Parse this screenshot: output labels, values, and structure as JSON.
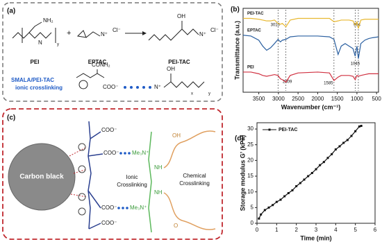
{
  "panel_a": {
    "label": "(a)",
    "names": [
      "PEI",
      "EPTAC",
      "PEI-TAC"
    ],
    "plus": "+",
    "chem": {
      "nh2": "NH₂",
      "n": "N",
      "n_plus": "N⁺",
      "cl": "Cl⁻",
      "oh": "OH",
      "conh2": "CONH₂",
      "coo": "COO⁻",
      "x": "x",
      "y": "y"
    },
    "caption": [
      "SMALA/PEI-TAC",
      "ionic crosslinking"
    ]
  },
  "panel_c": {
    "label": "(c)",
    "particle": "Carbon black",
    "coo": "COO⁻",
    "amine": "Me₃N⁺",
    "nh": "NH",
    "oh": "OH",
    "o": "O",
    "ionic": [
      "Ionic",
      "Crosslinking"
    ],
    "chemical": [
      "Chemical",
      "Crosslinking"
    ]
  },
  "chart_data": [
    {
      "type": "line",
      "panel_label": "(b)",
      "xlabel": "Wavenumber (cm⁻¹)",
      "ylabel": "Transmittance (a.u.)",
      "x": [
        3900,
        3700,
        3500,
        3400,
        3300,
        3200,
        3100,
        3010,
        2950,
        2900,
        2809,
        2700,
        2500,
        2000,
        1700,
        1585,
        1480,
        1400,
        1300,
        1200,
        1100,
        1045,
        1000,
        964,
        900,
        800,
        700,
        600,
        450
      ],
      "series": [
        {
          "name": "PEI-TAC",
          "color": "#e8b830",
          "values": [
            88,
            88,
            87,
            86,
            85,
            85,
            86,
            82,
            81,
            82,
            78,
            86,
            88,
            88,
            88,
            84,
            85,
            86,
            86,
            86,
            85,
            80,
            84,
            76,
            86,
            87,
            87,
            87,
            87
          ]
        },
        {
          "name": "EPTAC",
          "color": "#2a5fa0",
          "values": [
            68,
            67,
            62,
            55,
            50,
            53,
            58,
            63,
            60,
            62,
            63,
            66,
            67,
            67,
            66,
            63,
            45,
            55,
            58,
            55,
            52,
            43,
            55,
            40,
            58,
            62,
            64,
            65,
            66
          ]
        },
        {
          "name": "PEI",
          "color": "#d03040",
          "values": [
            24,
            24,
            22,
            20,
            19,
            20,
            21,
            20,
            16,
            15,
            12,
            20,
            23,
            24,
            23,
            14,
            18,
            20,
            20,
            20,
            19,
            15,
            20,
            19,
            20,
            21,
            22,
            22,
            22
          ]
        }
      ],
      "annotations": [
        3010,
        2809,
        1585,
        1045,
        964
      ],
      "xlim": [
        3900,
        450
      ],
      "ylim": [
        0,
        100
      ],
      "xticks": [
        3500,
        3000,
        2500,
        2000,
        1500,
        1000,
        500
      ]
    },
    {
      "type": "line",
      "panel_label": "(d)",
      "xlabel": "Time (min)",
      "ylabel": "Storage modulus G’ (kPa)",
      "marker": "square",
      "x": [
        0.1,
        0.2,
        0.4,
        0.6,
        0.8,
        1.0,
        1.2,
        1.4,
        1.6,
        1.8,
        2.0,
        2.2,
        2.4,
        2.6,
        2.8,
        3.0,
        3.2,
        3.4,
        3.6,
        3.8,
        4.0,
        4.2,
        4.4,
        4.6,
        4.8,
        5.0,
        5.2,
        5.3
      ],
      "series": [
        {
          "name": "PEI-TAC",
          "color": "#111111",
          "values": [
            1.5,
            2.8,
            4.2,
            5.0,
            5.8,
            6.8,
            7.5,
            8.6,
            9.6,
            10.5,
            11.8,
            12.8,
            13.9,
            15.0,
            16.0,
            17.2,
            18.5,
            19.5,
            20.8,
            22.0,
            23.5,
            24.5,
            25.6,
            26.5,
            27.8,
            29.3,
            30.8,
            31.0
          ]
        }
      ],
      "xlim": [
        0,
        6
      ],
      "ylim": [
        0,
        32
      ],
      "xticks": [
        0,
        1,
        2,
        3,
        4,
        5,
        6
      ],
      "yticks": [
        0,
        5,
        10,
        15,
        20,
        25,
        30
      ]
    }
  ]
}
